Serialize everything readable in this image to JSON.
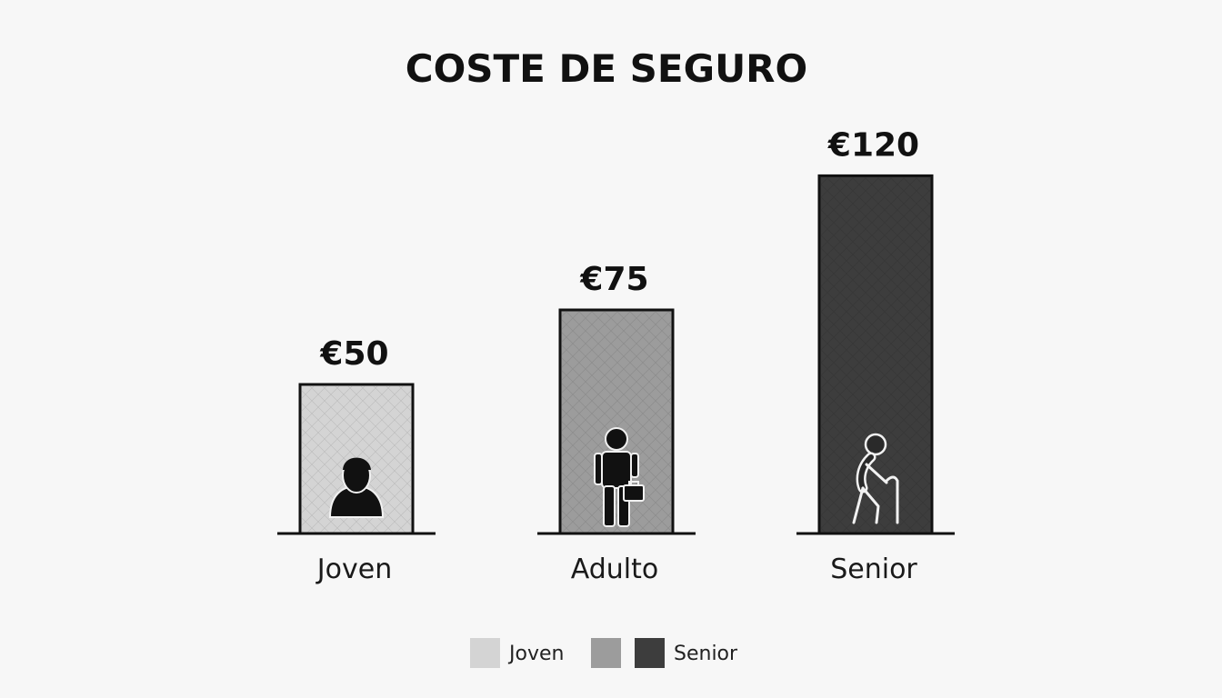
{
  "chart_data": {
    "type": "bar",
    "title": "COSTE DE SEGURO",
    "categories": [
      "Joven",
      "Adulto",
      "Senior"
    ],
    "values": [
      50,
      75,
      120
    ],
    "value_labels": [
      "€50",
      "€75",
      "€120"
    ],
    "colors": [
      "#d4d4d4",
      "#9c9c9c",
      "#3d3d3d"
    ],
    "icons": [
      "person-bust-icon",
      "person-briefcase-icon",
      "elderly-cane-icon"
    ],
    "xlabel": "",
    "ylabel": "",
    "ylim": [
      0,
      120
    ],
    "grid": false,
    "legend": {
      "position": "bottom-center",
      "entries": [
        {
          "label": "Joven",
          "color": "#d4d4d4"
        },
        {
          "label": "",
          "color": "#9c9c9c"
        },
        {
          "label": "Senior",
          "color": "#3d3d3d"
        }
      ]
    }
  }
}
